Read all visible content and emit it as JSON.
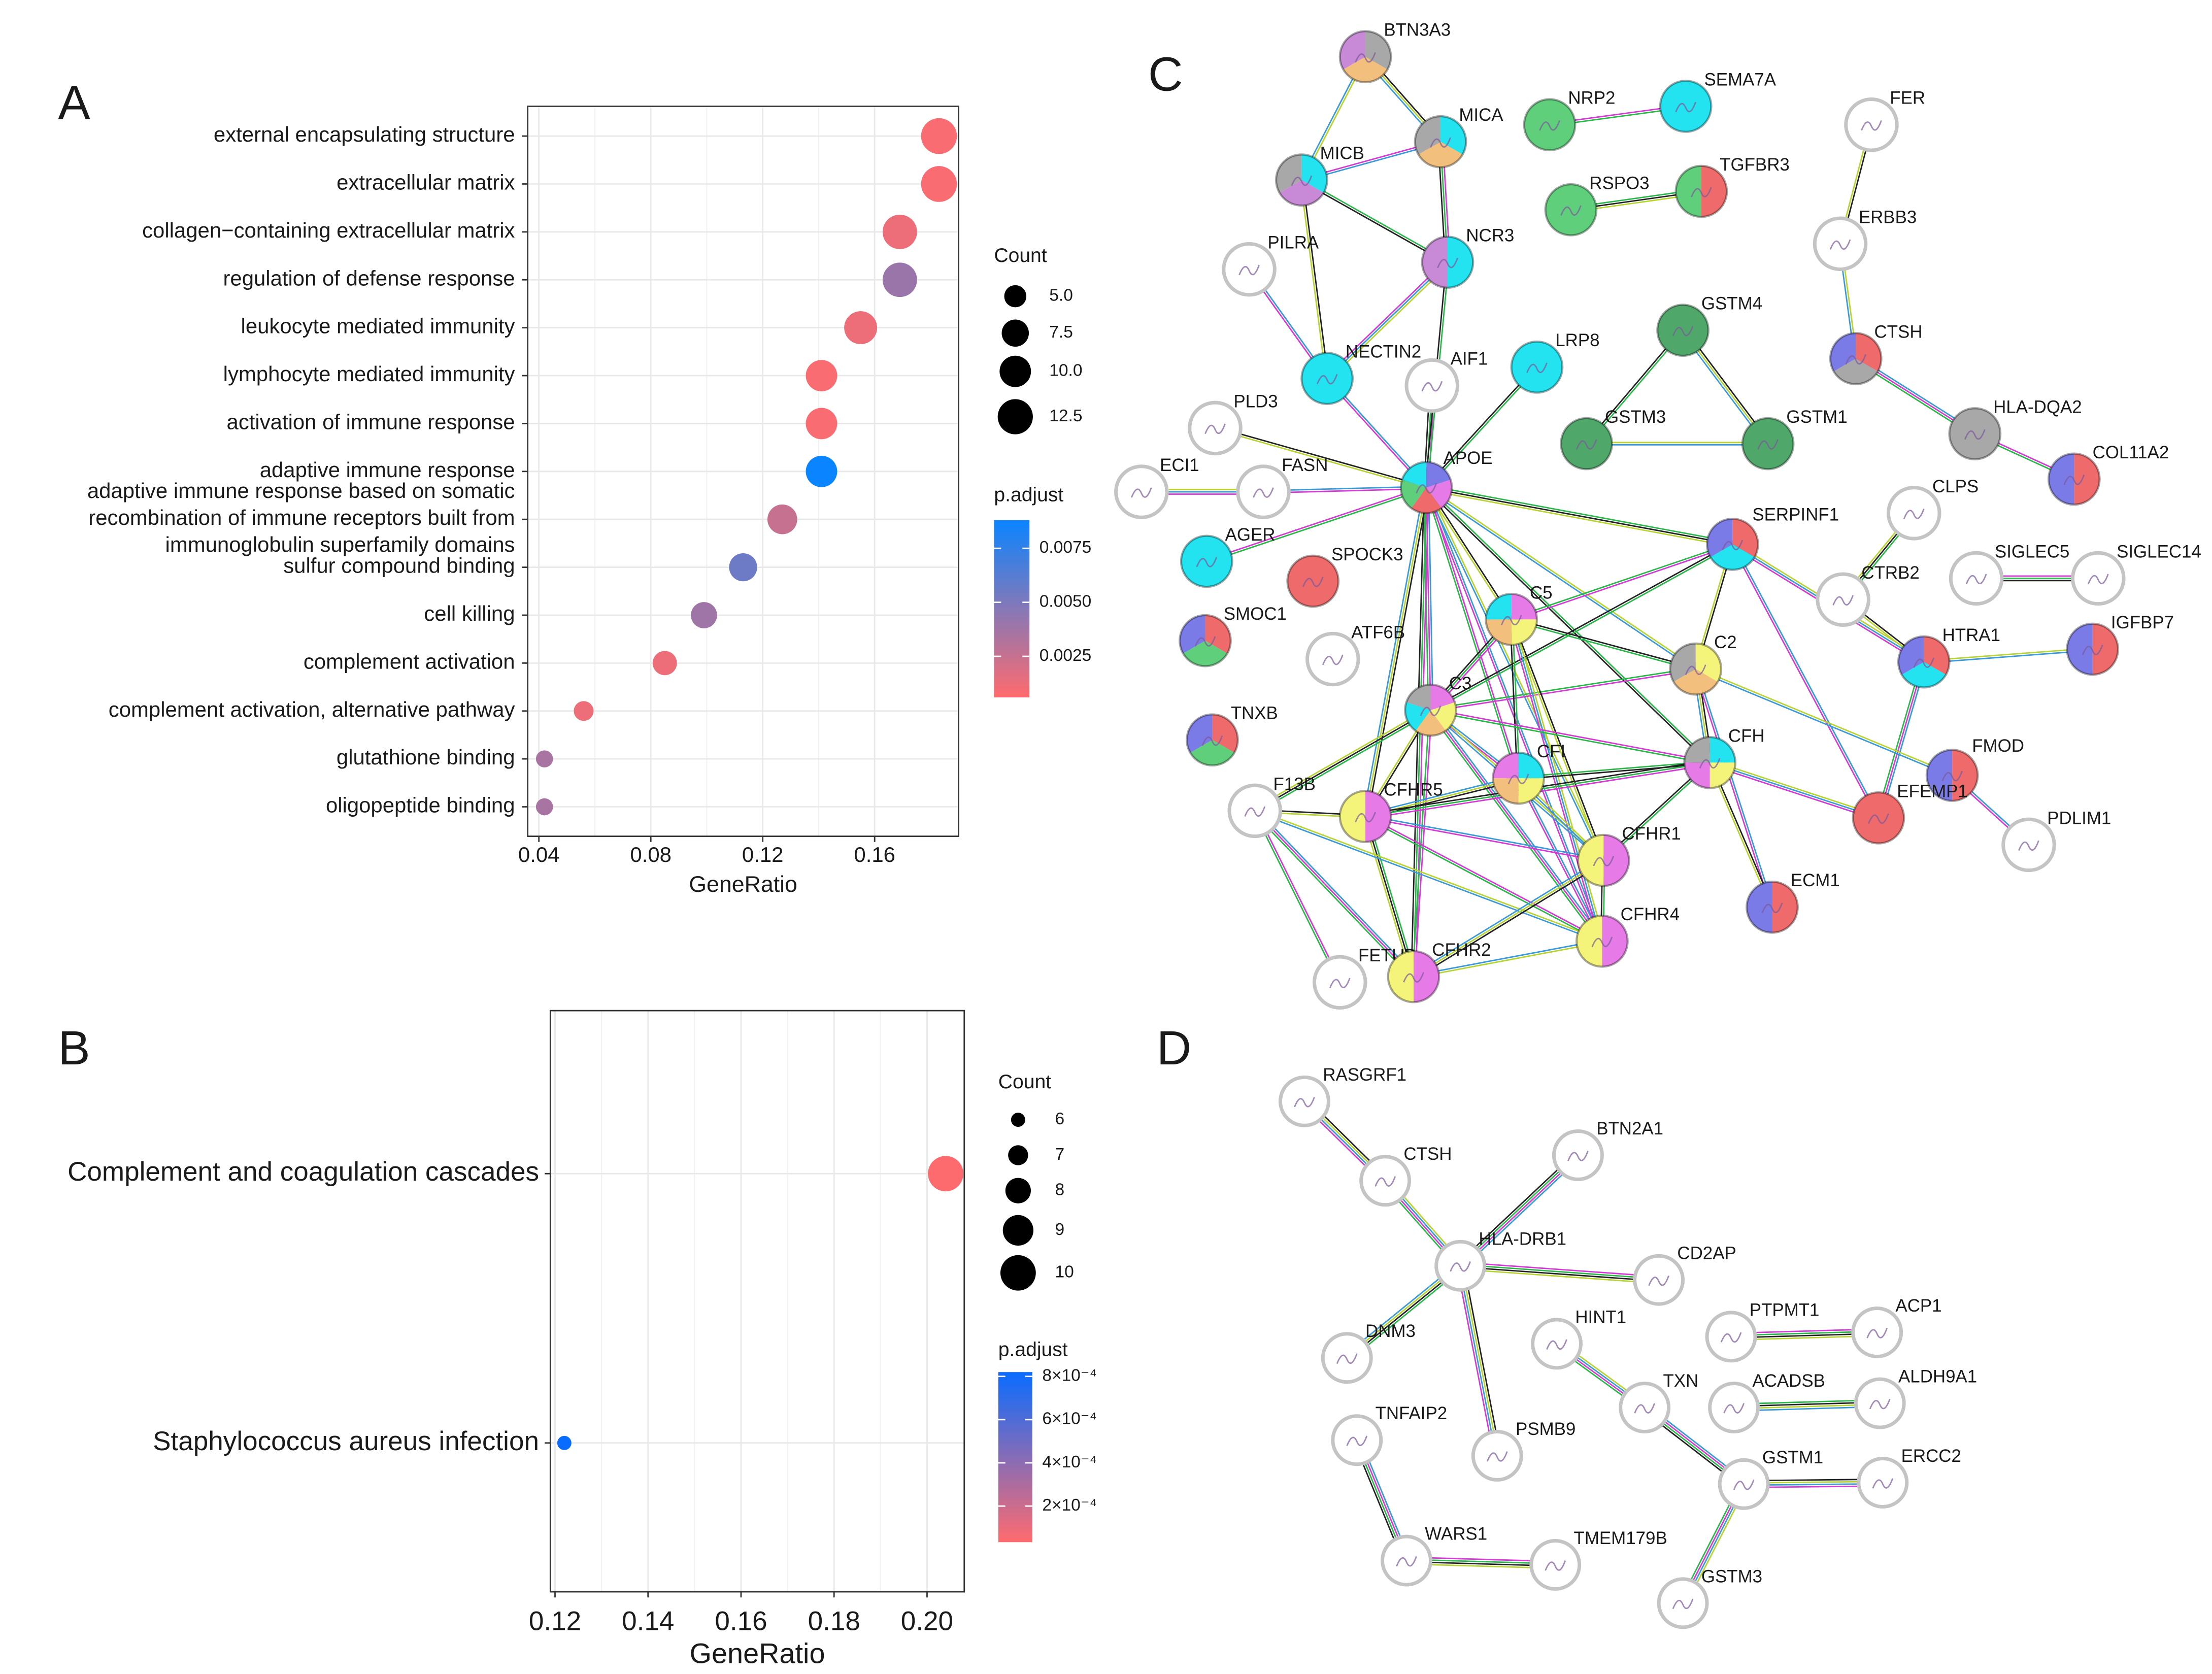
{
  "chart_data": [
    {
      "type": "dot",
      "panel_label": "A",
      "x_label": "GeneRatio",
      "categories": [
        "external encapsulating structure",
        "extracellular matrix",
        "collagen−containing extracellular matrix",
        "regulation of defense response",
        "leukocyte mediated immunity",
        "lymphocyte mediated immunity",
        "activation of immune response",
        "adaptive immune response",
        "adaptive immune response based on somatic\nrecombination of immune receptors built from\nimmunoglobulin superfamily domains",
        "sulfur compound binding",
        "cell killing",
        "complement activation",
        "complement activation, alternative pathway",
        "glutathione binding",
        "oligopeptide binding"
      ],
      "values": [
        0.183,
        0.183,
        0.169,
        0.169,
        0.155,
        0.141,
        0.141,
        0.141,
        0.127,
        0.113,
        0.099,
        0.085,
        0.056,
        0.042,
        0.042
      ],
      "counts": [
        13,
        13,
        12,
        12,
        11,
        10,
        10,
        10,
        9,
        8,
        7,
        6,
        4,
        3,
        3
      ],
      "p_adjust": [
        0.0008,
        0.0008,
        0.0012,
        0.004,
        0.0012,
        0.0008,
        0.0008,
        0.0088,
        0.0025,
        0.0055,
        0.0038,
        0.0012,
        0.0012,
        0.0035,
        0.0035
      ],
      "xlim": [
        0.036,
        0.19
      ],
      "xticks": [
        0.04,
        0.08,
        0.12,
        0.16
      ],
      "grid": true,
      "size_legend": {
        "title": "Count",
        "values": [
          {
            "value": 5,
            "label": "5.0"
          },
          7.5,
          {
            "value": 10,
            "label": "10.0"
          },
          12.5
        ]
      },
      "color_legend": {
        "title": "p.adjust",
        "lim": [
          0.0006,
          0.0088
        ],
        "colors": [
          "#ff6b6e",
          "#0a84ff"
        ],
        "ticks": [
          0.0025,
          {
            "value": 0.005,
            "label": "0.0050"
          },
          0.0075
        ]
      }
    },
    {
      "type": "dot",
      "panel_label": "B",
      "x_label": "GeneRatio",
      "categories": [
        "Complement and coagulation cascades",
        "Staphylococcus aureus infection"
      ],
      "values": [
        0.204,
        0.122
      ],
      "counts": [
        10,
        6
      ],
      "p_adjust": [
        4e-05,
        0.00082
      ],
      "xlim": [
        0.119,
        0.208
      ],
      "xticks": [
        0.12,
        0.14,
        0.16,
        0.18,
        {
          "value": 0.2,
          "label": "0.20"
        }
      ],
      "grid": true,
      "size_legend": {
        "title": "Count",
        "values": [
          6,
          7,
          8,
          9,
          10
        ]
      },
      "color_legend": {
        "title": "p.adjust",
        "lim": [
          3.3e-05,
          0.00082
        ],
        "colors": [
          "#ff6b6e",
          "#0a6cff"
        ],
        "ticks": [
          {
            "value": 0.0002,
            "label": "2×10⁻⁴"
          },
          {
            "value": 0.0004,
            "label": "4×10⁻⁴"
          },
          {
            "value": 0.0006,
            "label": "6×10⁻⁴"
          },
          {
            "value": 0.0008,
            "label": "8×10⁻⁴"
          }
        ]
      }
    }
  ],
  "networks": [
    {
      "panel_label": "C",
      "nodes": [
        {
          "label": "BTN3A3"
        },
        {
          "label": "MICA"
        },
        {
          "label": "MICB"
        },
        {
          "label": "NCR3"
        },
        {
          "label": "NRP2"
        },
        {
          "label": "SEMA7A"
        },
        {
          "label": "RSPO3"
        },
        {
          "label": "TGFBR3"
        },
        {
          "label": "FER"
        },
        {
          "label": "ERBB3"
        },
        {
          "label": "PILRA"
        },
        {
          "label": "NECTIN2"
        },
        {
          "label": "AIF1"
        },
        {
          "label": "LRP8"
        },
        {
          "label": "GSTM4"
        },
        {
          "label": "GSTM3"
        },
        {
          "label": "GSTM1"
        },
        {
          "label": "CTSH"
        },
        {
          "label": "HLA-DQA2"
        },
        {
          "label": "COL11A2"
        },
        {
          "label": "PLD3"
        },
        {
          "label": "ECI1"
        },
        {
          "label": "FASN"
        },
        {
          "label": "APOE"
        },
        {
          "label": "CLPS"
        },
        {
          "label": "AGER"
        },
        {
          "label": "SPOCK3"
        },
        {
          "label": "SERPINF1"
        },
        {
          "label": "SIGLEC5"
        },
        {
          "label": "SIGLEC14"
        },
        {
          "label": "SMOC1"
        },
        {
          "label": "CTRB2"
        },
        {
          "label": "C5"
        },
        {
          "label": "ATF6B"
        },
        {
          "label": "C2"
        },
        {
          "label": "HTRA1"
        },
        {
          "label": "IGFBP7"
        },
        {
          "label": "TNXB"
        },
        {
          "label": "C3"
        },
        {
          "label": "CFI"
        },
        {
          "label": "CFH"
        },
        {
          "label": "FMOD"
        },
        {
          "label": "F13B"
        },
        {
          "label": "CFHR5"
        },
        {
          "label": "EFEMP1"
        },
        {
          "label": "PDLIM1"
        },
        {
          "label": "CFHR1"
        },
        {
          "label": "ECM1"
        },
        {
          "label": "CFHR4"
        },
        {
          "label": "FETUB"
        },
        {
          "label": "CFHR2"
        }
      ]
    },
    {
      "panel_label": "D",
      "nodes": [
        {
          "label": "RASGRF1"
        },
        {
          "label": "CTSH"
        },
        {
          "label": "BTN2A1"
        },
        {
          "label": "HLA-DRB1"
        },
        {
          "label": "CD2AP"
        },
        {
          "label": "DNM3"
        },
        {
          "label": "HINT1"
        },
        {
          "label": "PTPMT1"
        },
        {
          "label": "ACP1"
        },
        {
          "label": "TXN"
        },
        {
          "label": "ACADSB"
        },
        {
          "label": "ALDH9A1"
        },
        {
          "label": "TNFAIP2"
        },
        {
          "label": "PSMB9"
        },
        {
          "label": "GSTM1"
        },
        {
          "label": "ERCC2"
        },
        {
          "label": "WARS1"
        },
        {
          "label": "TMEM179B"
        },
        {
          "label": "GSTM3"
        }
      ]
    }
  ]
}
